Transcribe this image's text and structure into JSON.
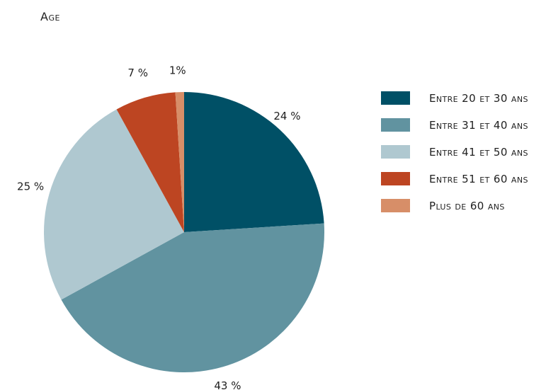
{
  "chart_data": {
    "type": "pie",
    "title": "Age",
    "slices": [
      {
        "label": "Entre 20 et 30 ans",
        "value": 24,
        "display": "24 %",
        "color": "#005066"
      },
      {
        "label": "Entre 31 et 40 ans",
        "value": 43,
        "display": "43 %",
        "color": "#6193a0"
      },
      {
        "label": "Entre 41 et 50 ans",
        "value": 25,
        "display": "25 %",
        "color": "#afc8d0"
      },
      {
        "label": "Entre 51 et 60 ans",
        "value": 7,
        "display": "7 %",
        "color": "#bd4522"
      },
      {
        "label": "Plus de 60 ans",
        "value": 1,
        "display": "1%",
        "color": "#d78e68"
      }
    ],
    "legend_position": "right"
  }
}
